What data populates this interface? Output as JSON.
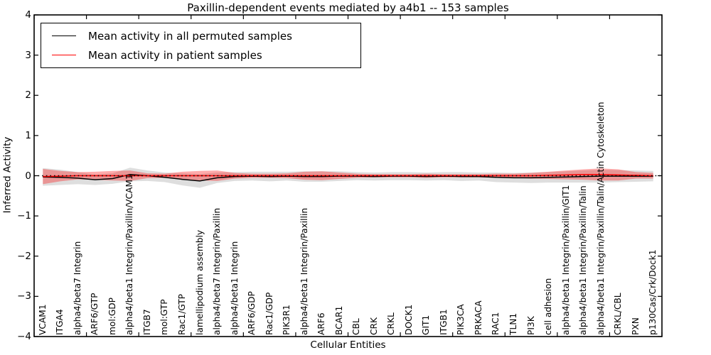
{
  "title": "Paxillin-dependent events mediated by a4b1 -- 153 samples",
  "legend": {
    "items": [
      {
        "label": "Mean activity in all permuted samples",
        "color": "#000000"
      },
      {
        "label": "Mean activity in patient samples",
        "color": "#ff0000"
      }
    ]
  },
  "axes": {
    "xlabel": "Cellular Entities",
    "ylabel": "Inferred Activity",
    "ytick_labels": [
      "4",
      "3",
      "2",
      "1",
      "0",
      "−1",
      "−2",
      "−3",
      "−4"
    ]
  },
  "chart_data": {
    "type": "line",
    "title": "Paxillin-dependent events mediated by a4b1 -- 153 samples",
    "xlabel": "Cellular Entities",
    "ylabel": "Inferred Activity",
    "ylim": [
      -4,
      4
    ],
    "yticks": [
      4,
      3,
      2,
      1,
      0,
      -1,
      -2,
      -3,
      -4
    ],
    "grid": false,
    "legend_position": "upper left",
    "zero_reference_line": true,
    "categories": [
      "VCAM1",
      "ITGA4",
      "alpha4/beta7 Integrin",
      "ARF6/GTP",
      "mol:GDP",
      "alpha4/beta1 Integrin/Paxillin/VCAM1",
      "ITGB7",
      "mol:GTP",
      "Rac1/GTP",
      "lamellipodium assembly",
      "alpha4/beta7 Integrin/Paxillin",
      "alpha4/beta1 Integrin",
      "ARF6/GDP",
      "Rac1/GDP",
      "PIK3R1",
      "alpha4/beta1 Integrin/Paxillin",
      "ARF6",
      "BCAR1",
      "CBL",
      "CRK",
      "CRKL",
      "DOCK1",
      "GIT1",
      "ITGB1",
      "PIK3CA",
      "PRKACA",
      "RAC1",
      "TLN1",
      "PI3K",
      "cell adhesion",
      "alpha4/beta1 Integrin/Paxillin/GIT1",
      "alpha4/beta1 Integrin/Paxillin/Talin",
      "alpha4/beta1 Integrin/Paxillin/Talin/Actin Cytoskeleton",
      "CRKL/CBL",
      "PXN",
      "p130Cas/Crk/Dock1"
    ],
    "series": [
      {
        "name": "Mean activity in all permuted samples",
        "color": "#000000",
        "band_color": "rgba(0,0,0,0.13)",
        "values": [
          -0.03,
          -0.04,
          -0.06,
          -0.1,
          -0.07,
          0.03,
          0.0,
          -0.04,
          -0.09,
          -0.13,
          -0.05,
          -0.02,
          -0.01,
          -0.02,
          -0.01,
          -0.02,
          -0.02,
          -0.01,
          -0.01,
          -0.02,
          -0.01,
          -0.01,
          -0.02,
          -0.01,
          -0.02,
          -0.02,
          -0.04,
          -0.05,
          -0.05,
          -0.04,
          -0.03,
          -0.02,
          -0.01,
          -0.01,
          -0.01,
          -0.01
        ],
        "std": [
          0.22,
          0.19,
          0.15,
          0.13,
          0.13,
          0.17,
          0.13,
          0.12,
          0.15,
          0.17,
          0.13,
          0.11,
          0.11,
          0.12,
          0.11,
          0.13,
          0.13,
          0.12,
          0.1,
          0.1,
          0.1,
          0.1,
          0.1,
          0.1,
          0.11,
          0.1,
          0.12,
          0.12,
          0.13,
          0.13,
          0.14,
          0.15,
          0.16,
          0.15,
          0.14,
          0.13
        ]
      },
      {
        "name": "Mean activity in patient samples",
        "color": "#ff0000",
        "band_color": "rgba(255,0,0,0.33)",
        "values": [
          -0.02,
          -0.01,
          0.0,
          0.0,
          0.0,
          0.0,
          0.0,
          0.0,
          0.0,
          0.0,
          0.0,
          0.0,
          0.0,
          0.0,
          0.0,
          0.0,
          0.0,
          0.0,
          0.0,
          0.0,
          0.0,
          0.0,
          0.0,
          0.0,
          0.0,
          0.0,
          0.0,
          0.0,
          0.0,
          0.01,
          0.02,
          0.03,
          0.03,
          0.02,
          0.01,
          0.0
        ],
        "std": [
          0.19,
          0.13,
          0.09,
          0.1,
          0.12,
          0.13,
          0.06,
          0.05,
          0.1,
          0.12,
          0.13,
          0.07,
          0.05,
          0.05,
          0.06,
          0.1,
          0.11,
          0.08,
          0.05,
          0.04,
          0.04,
          0.04,
          0.05,
          0.04,
          0.04,
          0.04,
          0.05,
          0.05,
          0.07,
          0.09,
          0.11,
          0.13,
          0.15,
          0.14,
          0.08,
          0.07
        ]
      }
    ]
  }
}
